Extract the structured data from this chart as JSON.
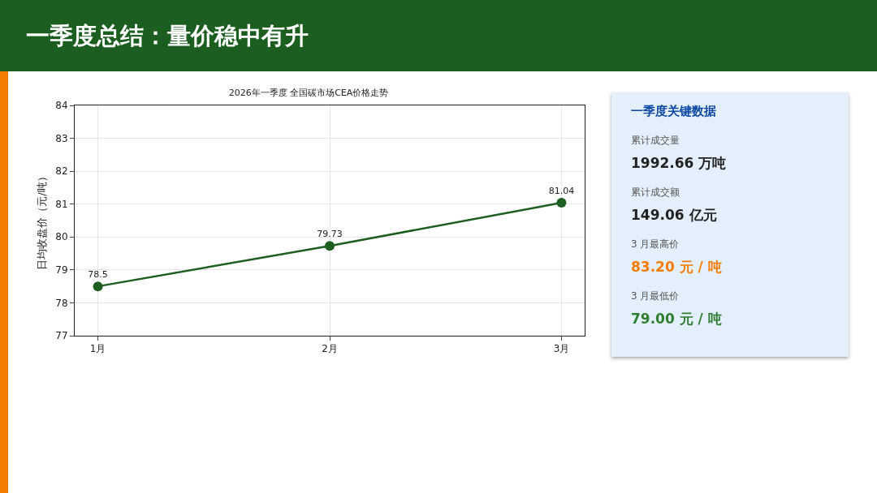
{
  "chart_data": [
    {
      "type": "line",
      "title": "一季度总结：量价稳中有升",
      "subtitle": "2026年一季度 全国碳市场CEA价格走势",
      "ylabel": "日均收盘价（元/吨）",
      "categories": [
        "1月",
        "2月",
        "3月"
      ],
      "series": [
        {
          "color": "#1e5e20",
          "values": [
            78.5,
            79.73,
            81.04
          ]
        }
      ],
      "ylim": [
        77,
        84
      ],
      "yticks": [
        77,
        78,
        79,
        80,
        81,
        82,
        83,
        84
      ],
      "grid": true,
      "data_labels": true,
      "marker": "circle",
      "line_style": "solid",
      "legend": false
    },
    {
      "type": "other",
      "title": "一季度关键数据",
      "annotations": [
        "累计成交量",
        "1992.66 万吨",
        "累计成交额",
        "149.06 亿元",
        "3 月最高价",
        "83.20 元 / 吨",
        "3 月最低价",
        "79.00 元 / 吨"
      ]
    }
  ]
}
